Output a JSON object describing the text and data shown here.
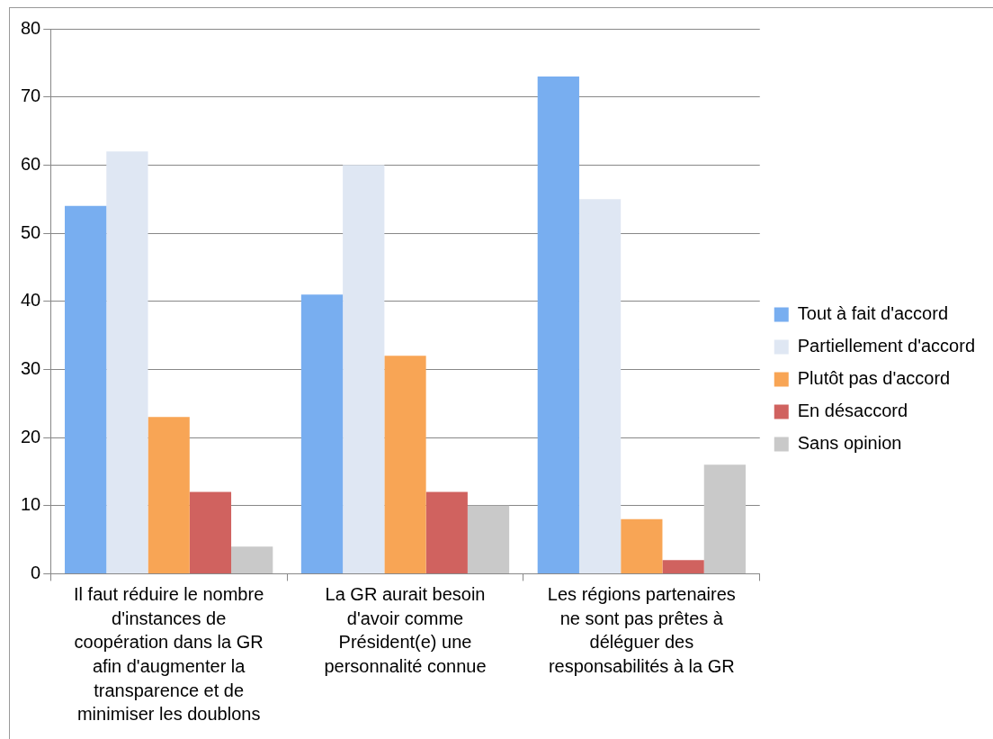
{
  "chart_data": {
    "type": "bar",
    "categories": [
      "Il faut réduire le nombre d'instances de coopération dans la GR afin d'augmenter la transparence et de minimiser les doublons",
      "La GR aurait besoin d'avoir comme Président(e) une personnalité connue",
      "Les régions partenaires ne sont pas prêtes à déléguer des responsabilités à la GR"
    ],
    "series": [
      {
        "name": "Tout à fait d'accord",
        "color": "#78aef0",
        "values": [
          54,
          41,
          73
        ]
      },
      {
        "name": "Partiellement d'accord",
        "color": "#dfe7f3",
        "values": [
          62,
          60,
          55
        ]
      },
      {
        "name": "Plutôt pas d'accord",
        "color": "#f8a555",
        "values": [
          23,
          32,
          8
        ]
      },
      {
        "name": "En désaccord",
        "color": "#d0625f",
        "values": [
          12,
          12,
          2
        ]
      },
      {
        "name": "Sans opinion",
        "color": "#c9c9c9",
        "values": [
          4,
          10,
          16
        ]
      }
    ],
    "ylim": [
      0,
      80
    ],
    "yticks": [
      0,
      10,
      20,
      30,
      40,
      50,
      60,
      70,
      80
    ],
    "grid": "y",
    "legend": "right"
  }
}
